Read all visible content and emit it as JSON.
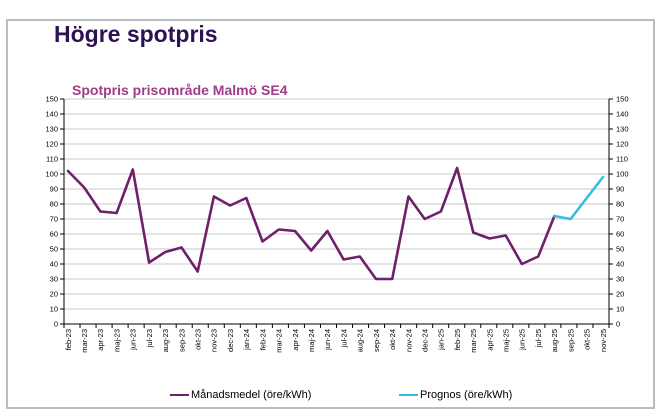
{
  "page": {
    "title": "Högre spotpris"
  },
  "colors": {
    "page_title": "#2e1155",
    "chart_title": "#9e3d87",
    "manadsmedel_line": "#6e2069",
    "prognos_line": "#35bce5",
    "gridline": "#c9c9c9",
    "axis": "#000000",
    "panel_border": "#b9bcc2"
  },
  "chart_data": {
    "type": "line",
    "title": "Spotpris prisområde Malmö SE4",
    "xlabel": "",
    "ylabel": "",
    "ylim": [
      0,
      150
    ],
    "ytick_step": 10,
    "grid": true,
    "legend_position": "bottom",
    "categories": [
      "feb-23",
      "mar-23",
      "apr-23",
      "maj-23",
      "jun-23",
      "jul-23",
      "aug-23",
      "sep-23",
      "okt-23",
      "nov-23",
      "dec-23",
      "jan-24",
      "feb-24",
      "mar-24",
      "apr-24",
      "maj-24",
      "jun-24",
      "jul-24",
      "aug-24",
      "sep-24",
      "okt-24",
      "nov-24",
      "dec-24",
      "jan-25",
      "feb-25",
      "mar-25",
      "apr-25",
      "maj-25",
      "jun-25",
      "jul-25",
      "aug-25",
      "sep-25",
      "okt-25",
      "nov-25"
    ],
    "series": [
      {
        "name": "Månadsmedel (öre/kWh)",
        "color": "#6e2069",
        "values": [
          102,
          91,
          75,
          74,
          103,
          41,
          48,
          51,
          35,
          85,
          79,
          84,
          55,
          63,
          62,
          49,
          62,
          43,
          45,
          30,
          30,
          85,
          70,
          75,
          104,
          61,
          57,
          59,
          40,
          45,
          72,
          null,
          null,
          null
        ]
      },
      {
        "name": "Prognos (öre/kWh)",
        "color": "#35bce5",
        "values": [
          null,
          null,
          null,
          null,
          null,
          null,
          null,
          null,
          null,
          null,
          null,
          null,
          null,
          null,
          null,
          null,
          null,
          null,
          null,
          null,
          null,
          null,
          null,
          null,
          null,
          null,
          null,
          null,
          null,
          null,
          72,
          70,
          84,
          98
        ]
      }
    ]
  }
}
